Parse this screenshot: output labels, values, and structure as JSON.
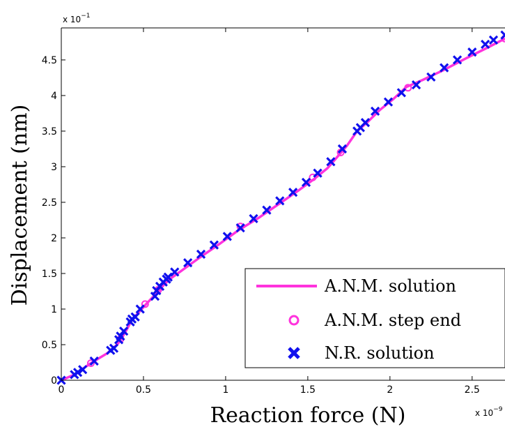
{
  "chart_data": {
    "type": "line",
    "xlabel": "Reaction force (N)",
    "ylabel": "Displacement (nm)",
    "x_multiplier": "x 10",
    "x_multiplier_exp": "−9",
    "y_multiplier": "x 10",
    "y_multiplier_exp": "−1",
    "xlim": [
      0,
      2.7
    ],
    "ylim": [
      0,
      4.95
    ],
    "xticks": [
      0,
      0.5,
      1,
      1.5,
      2,
      2.5
    ],
    "xtick_labels": [
      "0",
      "0.5",
      "1",
      "1.5",
      "2",
      "2.5"
    ],
    "yticks": [
      0,
      0.5,
      1,
      1.5,
      2,
      2.5,
      3,
      3.5,
      4,
      4.5
    ],
    "ytick_labels": [
      "0",
      "0.5",
      "1",
      "1.5",
      "2",
      "2.5",
      "3",
      "3.5",
      "4",
      "4.5"
    ],
    "grid": false,
    "legend_position": "bottom-right",
    "colors": {
      "anm_solution": "#ff33dd",
      "anm_step_end": "#ff33dd",
      "nr_solution": "#1010ee"
    },
    "series": [
      {
        "name": "A.N.M. solution",
        "style": "line",
        "x": [
          0,
          0.08,
          0.18,
          0.28,
          0.34,
          0.37,
          0.4,
          0.43,
          0.47,
          0.52,
          0.57,
          0.62,
          0.66,
          0.72,
          0.84,
          0.96,
          1.08,
          1.2,
          1.32,
          1.44,
          1.54,
          1.62,
          1.68,
          1.74,
          1.8,
          1.86,
          1.94,
          2.02,
          2.1,
          2.2,
          2.32,
          2.46,
          2.6,
          2.7
        ],
        "y": [
          0,
          0.08,
          0.24,
          0.38,
          0.5,
          0.6,
          0.72,
          0.85,
          0.95,
          1.08,
          1.2,
          1.33,
          1.42,
          1.52,
          1.72,
          1.91,
          2.11,
          2.28,
          2.47,
          2.66,
          2.83,
          2.98,
          3.14,
          3.3,
          3.5,
          3.62,
          3.8,
          3.95,
          4.12,
          4.22,
          4.35,
          4.52,
          4.68,
          4.8
        ]
      },
      {
        "name": "A.N.M. step end",
        "style": "marker-circle",
        "x": [
          0.18,
          0.36,
          0.51,
          0.59,
          1.09,
          1.53,
          1.7,
          2.11,
          2.7
        ],
        "y": [
          0.24,
          0.58,
          1.07,
          1.27,
          2.16,
          2.85,
          3.2,
          4.11,
          4.8
        ]
      },
      {
        "name": "N.R. solution",
        "style": "marker-x",
        "x": [
          0,
          0.08,
          0.1,
          0.13,
          0.2,
          0.3,
          0.32,
          0.35,
          0.36,
          0.38,
          0.42,
          0.43,
          0.45,
          0.48,
          0.57,
          0.58,
          0.6,
          0.62,
          0.64,
          0.65,
          0.69,
          0.77,
          0.85,
          0.93,
          1.01,
          1.09,
          1.17,
          1.25,
          1.33,
          1.41,
          1.49,
          1.56,
          1.64,
          1.71,
          1.8,
          1.82,
          1.85,
          1.91,
          1.99,
          2.07,
          2.16,
          2.25,
          2.33,
          2.41,
          2.5,
          2.58,
          2.63,
          2.7
        ],
        "y": [
          0,
          0.08,
          0.11,
          0.15,
          0.27,
          0.42,
          0.45,
          0.57,
          0.62,
          0.69,
          0.82,
          0.86,
          0.89,
          1.0,
          1.18,
          1.26,
          1.32,
          1.38,
          1.42,
          1.45,
          1.52,
          1.65,
          1.77,
          1.9,
          2.02,
          2.14,
          2.27,
          2.39,
          2.52,
          2.64,
          2.78,
          2.91,
          3.07,
          3.25,
          3.5,
          3.55,
          3.62,
          3.78,
          3.91,
          4.04,
          4.15,
          4.26,
          4.39,
          4.5,
          4.61,
          4.72,
          4.78,
          4.85
        ]
      }
    ]
  }
}
